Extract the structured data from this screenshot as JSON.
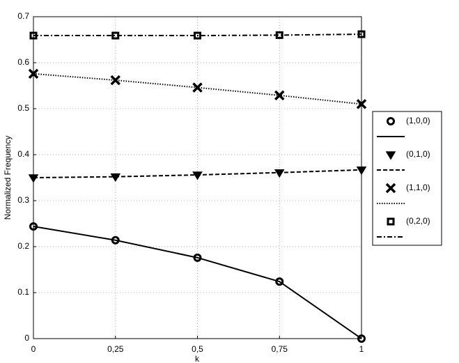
{
  "chart_data": {
    "type": "line",
    "x_label": "k",
    "y_label": "Normalized Frequency",
    "x": [
      0,
      0.25,
      0.5,
      0.75,
      1
    ],
    "series": [
      {
        "name": "(1,0,0)",
        "color": "#000000",
        "dash": "solid",
        "marker": "circle",
        "values": [
          0.244,
          0.214,
          0.176,
          0.124,
          0
        ]
      },
      {
        "name": "(0,1,0)",
        "color": "#000000",
        "dash": "dashed",
        "marker": "triangle-down",
        "values": [
          0.35,
          0.352,
          0.356,
          0.361,
          0.367
        ]
      },
      {
        "name": "(1,1,0)",
        "color": "#000000",
        "dash": "dotted",
        "marker": "x",
        "values": [
          0.576,
          0.562,
          0.546,
          0.529,
          0.51
        ]
      },
      {
        "name": "(0,2,0)",
        "color": "#000000",
        "dash": "dashdot",
        "marker": "square",
        "values": [
          0.659,
          0.659,
          0.659,
          0.66,
          0.662
        ]
      }
    ],
    "xlim": [
      0,
      1
    ],
    "xticks": [
      0,
      {
        "value": 0.25,
        "label": "0,25"
      },
      {
        "value": 0.5,
        "label": "0,5"
      },
      {
        "value": 0.75,
        "label": "0,75"
      },
      1
    ],
    "ylim": [
      0,
      0.7
    ],
    "yticks": [
      0,
      0.1,
      0.2,
      0.3,
      0.4,
      0.5,
      0.6,
      0.7
    ],
    "grid": true,
    "legend": "outside-right"
  }
}
